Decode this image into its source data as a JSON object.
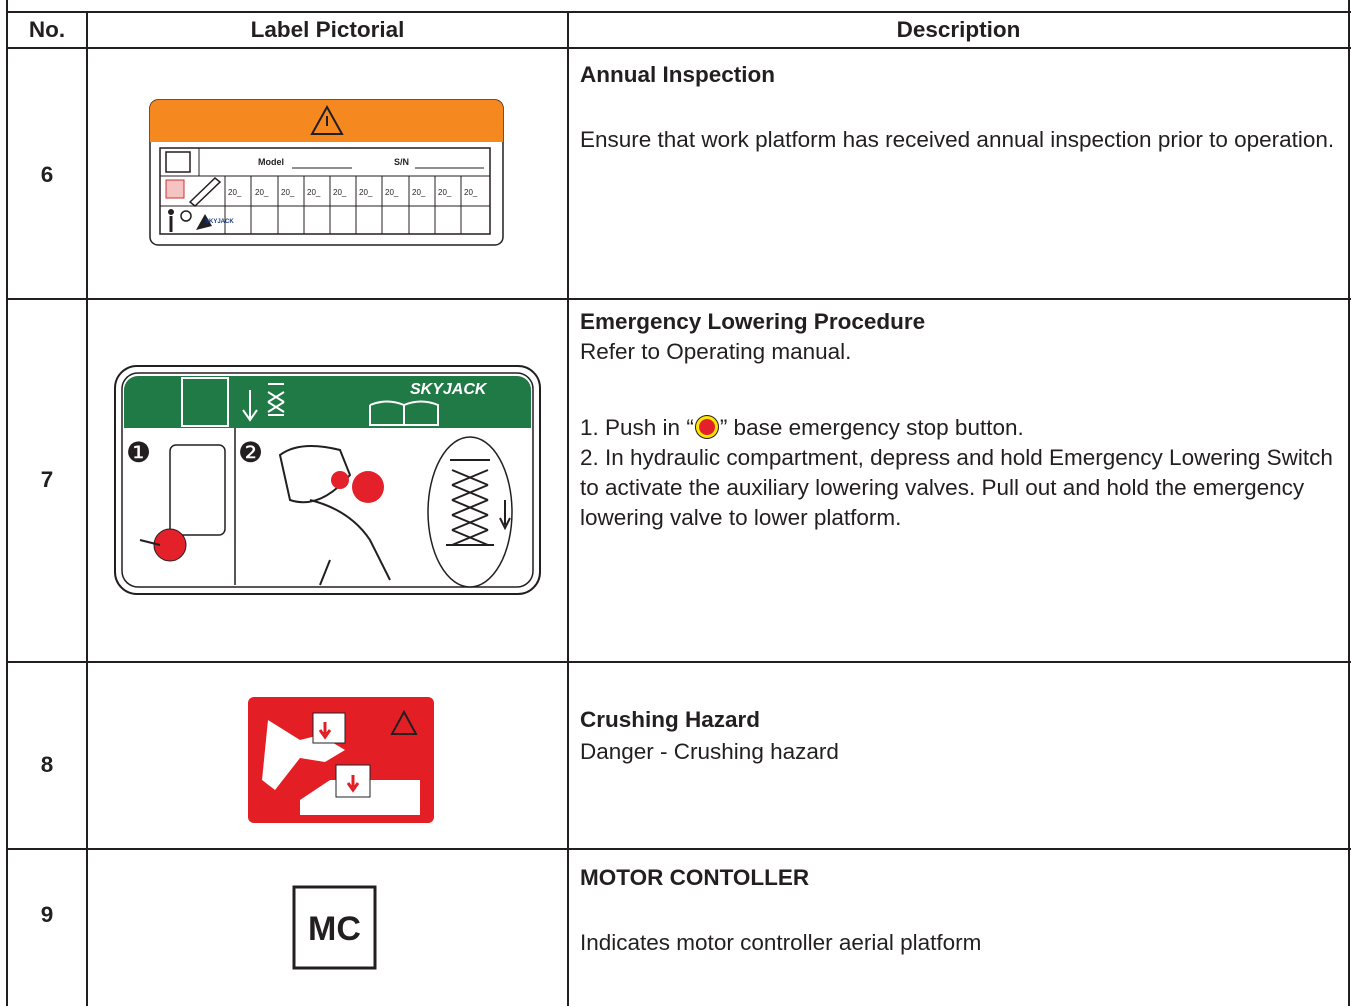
{
  "table": {
    "headers": [
      "No.",
      "Label Pictorial",
      "Description"
    ],
    "rows": [
      {
        "no": "6",
        "title": "Annual Inspection",
        "text": "Ensure that work platform has received annual inspection prior to operation.",
        "label_texts": [
          "Model",
          "S/N",
          "20_",
          "20_",
          "20_",
          "20_",
          "20_",
          "20_",
          "20_",
          "20_",
          "20_",
          "20_",
          "SKYJACK"
        ]
      },
      {
        "no": "7",
        "title": "Emergency Lowering Procedure",
        "intro": "Refer to Operating manual.",
        "step1": {
          "before": "1. Push in “",
          "after": "” base emergency stop button."
        },
        "step2": "2. In hydraulic compartment, depress and hold Emergency Lowering Switch to activate the auxiliary lowering valves. Pull out and hold the emergency lowering valve to lower platform.",
        "label_texts": [
          "SKYJACK",
          "❶",
          "❷"
        ]
      },
      {
        "no": "8",
        "title": "Crushing Hazard",
        "text": "Danger - Crushing hazard"
      },
      {
        "no": "9",
        "title": "MOTOR CONTOLLER",
        "text": "Indicates motor controller aerial platform",
        "label_texts": [
          "MC"
        ]
      }
    ]
  }
}
